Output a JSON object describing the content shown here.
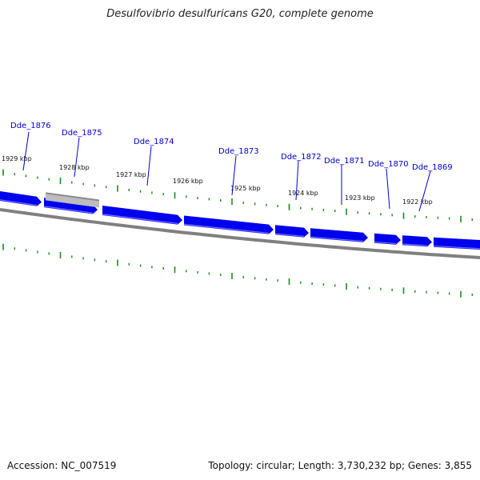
{
  "title": "Desulfovibrio desulfuricans G20, complete genome",
  "footer": {
    "accession": "Accession: NC_007519",
    "summary": "Topology: circular; Length: 3,730,232 bp; Genes: 3,855"
  },
  "colors": {
    "gene": "#0000ee",
    "gene_highlight": "#6b6bff",
    "backbone": "#808080",
    "tick": "#1a8a1a",
    "label": "#0000cc",
    "selected_gene": "#bdbdbd"
  },
  "tick_labels": [
    "1929 kbp",
    "1928 kbp",
    "1927 kbp",
    "1926 kbp",
    "1925 kbp",
    "1924 kbp",
    "1923 kbp",
    "1922 kbp"
  ],
  "genes": [
    {
      "name": "Dde_1876"
    },
    {
      "name": "Dde_1875"
    },
    {
      "name": "Dde_1874"
    },
    {
      "name": "Dde_1873"
    },
    {
      "name": "Dde_1872"
    },
    {
      "name": "Dde_1871"
    },
    {
      "name": "Dde_1870"
    },
    {
      "name": "Dde_1869"
    }
  ]
}
